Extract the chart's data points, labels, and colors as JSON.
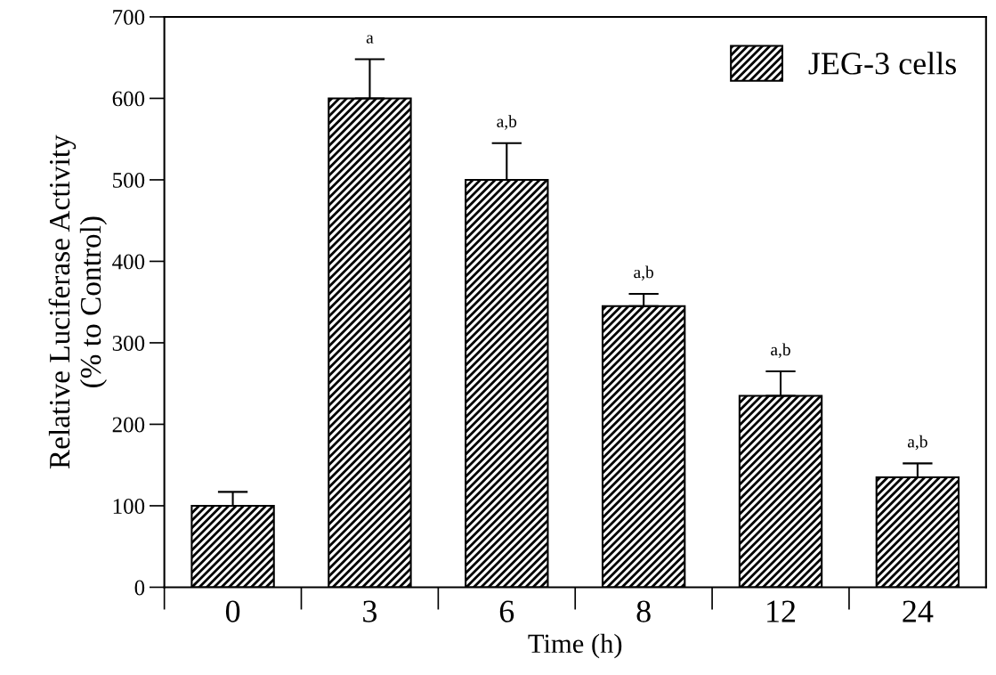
{
  "chart_data": {
    "type": "bar",
    "xlabel": "Time (h)",
    "ylabel": "Relative Luciferase Activity\n(% to Control)",
    "categories": [
      "0",
      "3",
      "6",
      "8",
      "12",
      "24"
    ],
    "series": [
      {
        "name": "JEG-3 cells",
        "color": "#000000",
        "values": [
          100,
          600,
          500,
          345,
          235,
          135
        ],
        "errors": [
          [
            100,
            117
          ],
          [
            600,
            648
          ],
          [
            500,
            545
          ],
          [
            345,
            360
          ],
          [
            235,
            265
          ],
          [
            135,
            152
          ]
        ]
      }
    ],
    "annotations": [
      {
        "text": "a",
        "x": "3",
        "y": 648
      },
      {
        "text": "a,b",
        "x": "6",
        "y": 545
      },
      {
        "text": "a,b",
        "x": "8",
        "y": 360
      },
      {
        "text": "a,b",
        "x": "12",
        "y": 265
      },
      {
        "text": "a,b",
        "x": "24",
        "y": 152
      }
    ],
    "ylim": [
      0,
      700
    ],
    "yticks": [
      0,
      100,
      200,
      300,
      400,
      500,
      600,
      700
    ],
    "legend": "top right",
    "grid": false
  }
}
